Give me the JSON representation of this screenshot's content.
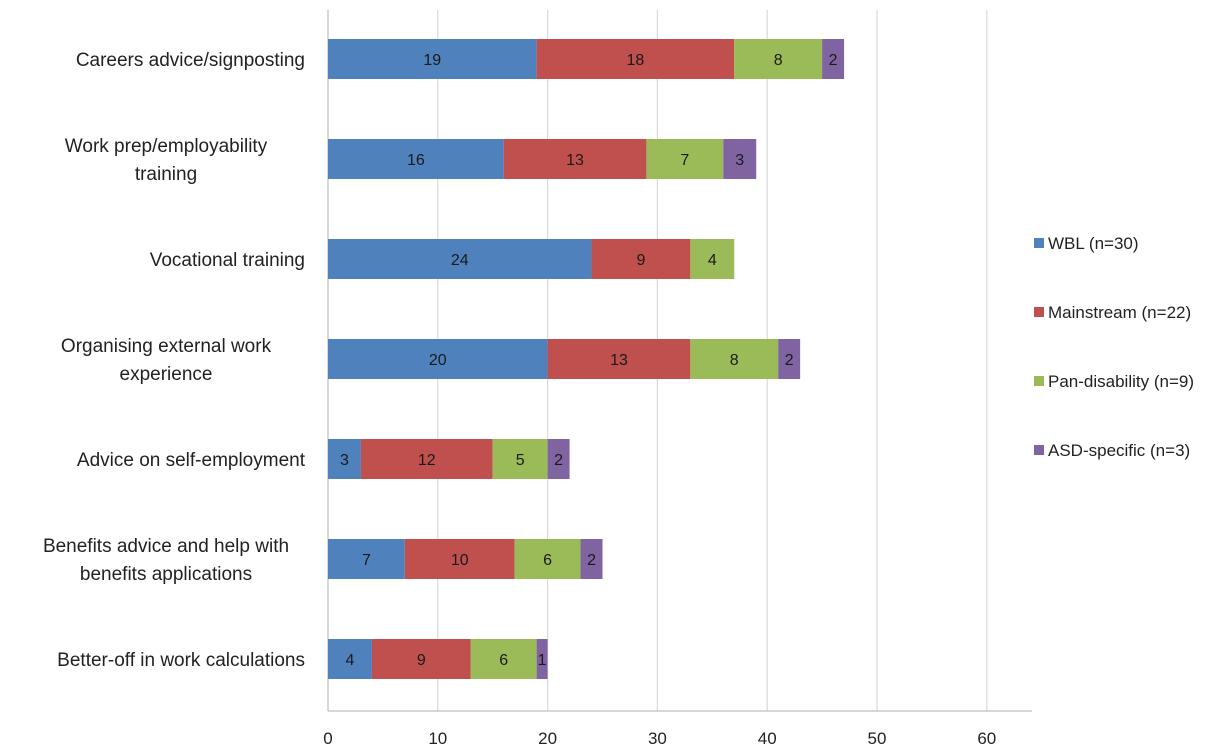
{
  "chart_data": {
    "type": "bar",
    "orientation": "horizontal",
    "stacked": true,
    "title": "",
    "xlabel": "",
    "ylabel": "",
    "xlim": [
      0,
      60
    ],
    "xticks": [
      0,
      10,
      20,
      30,
      40,
      50,
      60
    ],
    "grid": "vertical",
    "legend_position": "right",
    "categories": [
      [
        "Careers advice/signposting"
      ],
      [
        "Work prep/employability",
        "training"
      ],
      [
        "Vocational training"
      ],
      [
        "Organising external work",
        "experience"
      ],
      [
        "Advice on self-employment"
      ],
      [
        "Benefits advice and help with",
        "benefits applications"
      ],
      [
        "Better-off in work calculations"
      ]
    ],
    "series": [
      {
        "name": "WBL (n=30)",
        "color": "#4f81bd",
        "values": [
          19,
          16,
          24,
          20,
          3,
          7,
          4
        ]
      },
      {
        "name": "Mainstream (n=22)",
        "color": "#c0504d",
        "values": [
          18,
          13,
          9,
          13,
          12,
          10,
          9
        ]
      },
      {
        "name": "Pan-disability (n=9)",
        "color": "#9bbb59",
        "values": [
          8,
          7,
          4,
          8,
          5,
          6,
          6
        ]
      },
      {
        "name": "ASD-specific (n=3)",
        "color": "#8064a2",
        "values": [
          2,
          3,
          0,
          2,
          2,
          2,
          1
        ]
      }
    ]
  }
}
